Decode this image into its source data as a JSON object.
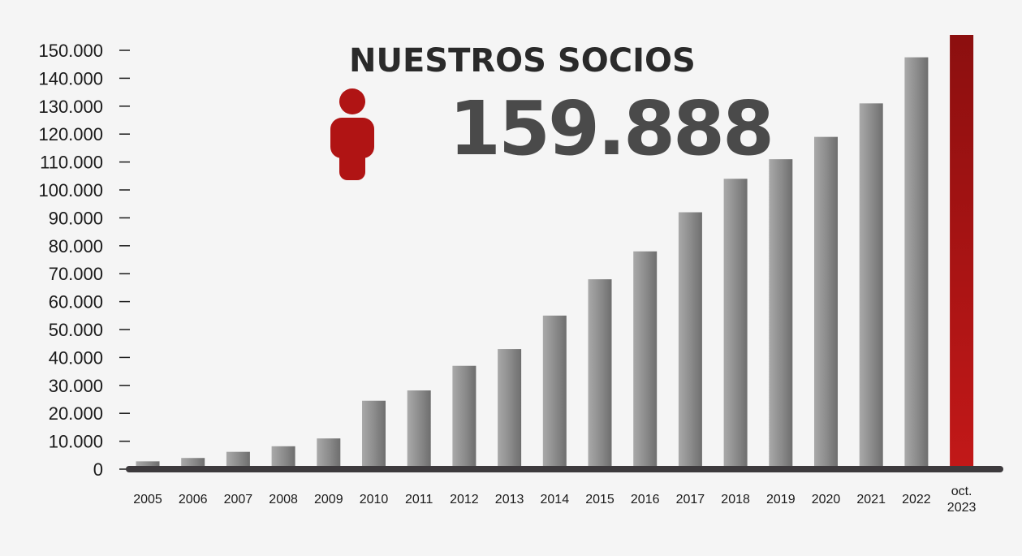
{
  "header": {
    "title": "NUESTROS SOCIOS",
    "total": "159.888"
  },
  "icons": {
    "person": "person-icon"
  },
  "colors": {
    "bar_gray": "#8a8a8a",
    "bar_highlight": "#b01414",
    "axis": "#3d3a3d",
    "icon": "#b01414"
  },
  "chart_data": {
    "type": "bar",
    "title": "NUESTROS SOCIOS",
    "xlabel": "",
    "ylabel": "",
    "ylim": [
      0,
      160000
    ],
    "yticks": [
      0,
      10000,
      20000,
      30000,
      40000,
      50000,
      60000,
      70000,
      80000,
      90000,
      100000,
      110000,
      120000,
      130000,
      140000,
      150000
    ],
    "ytick_labels": [
      "0",
      "10.000",
      "20.000",
      "30.000",
      "40.000",
      "50.000",
      "60.000",
      "70.000",
      "80.000",
      "90.000",
      "100.000",
      "110.000",
      "120.000",
      "130.000",
      "140.000",
      "150.000"
    ],
    "categories": [
      "2005",
      "2006",
      "2007",
      "2008",
      "2009",
      "2010",
      "2011",
      "2012",
      "2013",
      "2014",
      "2015",
      "2016",
      "2017",
      "2018",
      "2019",
      "2020",
      "2021",
      "2022",
      "oct.\n2023"
    ],
    "values": [
      2800,
      4000,
      6200,
      8200,
      11000,
      24500,
      28200,
      37000,
      43000,
      55000,
      68000,
      78000,
      92000,
      104000,
      111000,
      119000,
      131000,
      147500,
      159888
    ],
    "highlight_index": 18,
    "grid": false
  }
}
